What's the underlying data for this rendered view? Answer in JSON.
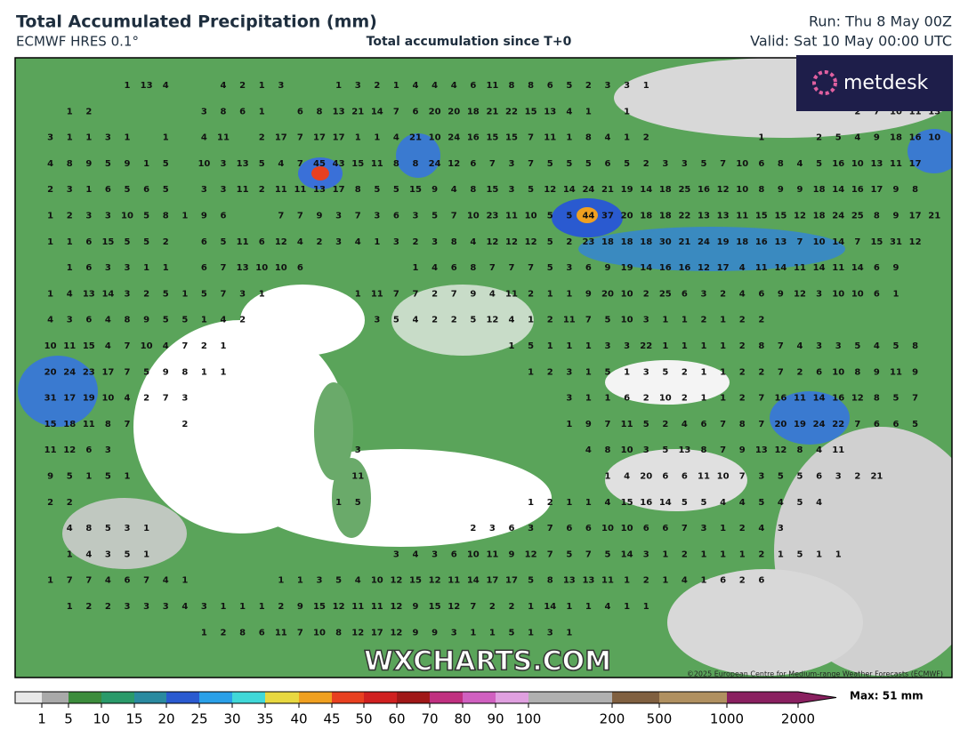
{
  "header": {
    "title": "Total Accumulated Precipitation (mm)",
    "model": "ECMWF HRES 0.1°",
    "subtitle": "Total accumulation since T+0",
    "run": "Run: Thu 8 May 00Z",
    "valid": "Valid: Sat 10 May 00:00 UTC"
  },
  "logo": "metdesk",
  "watermark": "WXCHARTS.COM",
  "copyright": "©2025 European Centre for Medium-range Weather Forecasts (ECMWF)",
  "point_values": [
    [
      null,
      null,
      null,
      null,
      null,
      1,
      13,
      4,
      null,
      null,
      4,
      2,
      1,
      3,
      null,
      null,
      1,
      3,
      2,
      1,
      4,
      4,
      4,
      6,
      11,
      8,
      8,
      6,
      5,
      2,
      3,
      3,
      1
    ],
    [
      null,
      null,
      1,
      2,
      null,
      null,
      null,
      null,
      null,
      3,
      8,
      6,
      1,
      null,
      6,
      8,
      13,
      21,
      14,
      7,
      6,
      20,
      20,
      18,
      21,
      22,
      15,
      13,
      4,
      1,
      null,
      1,
      null,
      null,
      null,
      null,
      null,
      null,
      null,
      null,
      null,
      null,
      null,
      2,
      7,
      10,
      11,
      13
    ],
    [
      null,
      3,
      1,
      1,
      3,
      1,
      null,
      1,
      null,
      4,
      11,
      null,
      2,
      17,
      7,
      17,
      17,
      1,
      1,
      4,
      21,
      10,
      24,
      16,
      15,
      15,
      7,
      11,
      1,
      8,
      4,
      1,
      2,
      null,
      null,
      null,
      null,
      null,
      1,
      null,
      null,
      2,
      5,
      4,
      9,
      18,
      16,
      10
    ],
    [
      null,
      4,
      8,
      9,
      5,
      9,
      1,
      5,
      null,
      10,
      3,
      13,
      5,
      4,
      7,
      45,
      43,
      15,
      11,
      8,
      8,
      24,
      12,
      6,
      7,
      3,
      7,
      5,
      5,
      5,
      6,
      5,
      2,
      3,
      3,
      5,
      7,
      10,
      6,
      8,
      4,
      5,
      16,
      10,
      13,
      11,
      17
    ],
    [
      null,
      2,
      3,
      1,
      6,
      5,
      6,
      5,
      null,
      3,
      3,
      11,
      2,
      11,
      11,
      13,
      17,
      8,
      5,
      5,
      15,
      9,
      4,
      8,
      15,
      3,
      5,
      12,
      14,
      24,
      21,
      19,
      14,
      18,
      25,
      16,
      12,
      10,
      8,
      9,
      9,
      18,
      14,
      16,
      17,
      9,
      8
    ],
    [
      null,
      1,
      2,
      3,
      3,
      10,
      5,
      8,
      1,
      9,
      6,
      null,
      null,
      7,
      7,
      9,
      3,
      7,
      3,
      6,
      3,
      5,
      7,
      10,
      23,
      11,
      10,
      5,
      5,
      44,
      37,
      20,
      18,
      18,
      22,
      13,
      13,
      11,
      15,
      15,
      12,
      18,
      24,
      25,
      8,
      9,
      17,
      21
    ],
    [
      null,
      1,
      1,
      6,
      15,
      5,
      5,
      2,
      null,
      6,
      5,
      11,
      6,
      12,
      4,
      2,
      3,
      4,
      1,
      3,
      2,
      3,
      8,
      4,
      12,
      12,
      12,
      5,
      2,
      23,
      18,
      18,
      18,
      30,
      21,
      24,
      19,
      18,
      16,
      13,
      7,
      10,
      14,
      7,
      15,
      31,
      12
    ],
    [
      null,
      null,
      1,
      6,
      3,
      3,
      1,
      1,
      null,
      6,
      7,
      13,
      10,
      10,
      6,
      null,
      null,
      null,
      null,
      null,
      1,
      4,
      6,
      8,
      7,
      7,
      7,
      5,
      3,
      6,
      9,
      19,
      14,
      16,
      16,
      12,
      17,
      4,
      11,
      14,
      11,
      14,
      11,
      14,
      6,
      9
    ],
    [
      null,
      1,
      4,
      13,
      14,
      3,
      2,
      5,
      1,
      5,
      7,
      3,
      1,
      null,
      null,
      null,
      null,
      1,
      11,
      7,
      7,
      2,
      7,
      9,
      4,
      11,
      2,
      1,
      1,
      9,
      20,
      10,
      2,
      25,
      6,
      3,
      2,
      4,
      6,
      9,
      12,
      3,
      10,
      10,
      6,
      1
    ],
    [
      null,
      4,
      3,
      6,
      4,
      8,
      9,
      5,
      5,
      1,
      4,
      2,
      null,
      null,
      null,
      null,
      null,
      null,
      3,
      5,
      4,
      2,
      2,
      5,
      12,
      4,
      1,
      2,
      11,
      7,
      5,
      10,
      3,
      1,
      1,
      2,
      1,
      2,
      2
    ],
    [
      null,
      10,
      11,
      15,
      4,
      7,
      10,
      4,
      7,
      2,
      1,
      null,
      null,
      null,
      null,
      null,
      null,
      null,
      null,
      null,
      null,
      null,
      null,
      null,
      null,
      1,
      5,
      1,
      1,
      1,
      3,
      3,
      22,
      1,
      1,
      1,
      1,
      2,
      8,
      7,
      4,
      3,
      3,
      5,
      4,
      5,
      8
    ],
    [
      null,
      20,
      24,
      23,
      17,
      7,
      5,
      9,
      8,
      1,
      1,
      null,
      null,
      null,
      null,
      null,
      null,
      null,
      null,
      null,
      null,
      null,
      null,
      null,
      null,
      null,
      1,
      2,
      3,
      1,
      5,
      1,
      3,
      5,
      2,
      1,
      1,
      2,
      2,
      7,
      2,
      6,
      10,
      8,
      9,
      11,
      9
    ],
    [
      null,
      31,
      17,
      19,
      10,
      4,
      2,
      7,
      3,
      null,
      null,
      null,
      null,
      null,
      null,
      null,
      null,
      null,
      null,
      null,
      null,
      null,
      null,
      null,
      null,
      null,
      null,
      null,
      3,
      1,
      1,
      6,
      2,
      10,
      2,
      1,
      1,
      2,
      7,
      16,
      11,
      14,
      16,
      12,
      8,
      5,
      7
    ],
    [
      null,
      15,
      18,
      11,
      8,
      7,
      null,
      null,
      2,
      null,
      null,
      null,
      null,
      null,
      null,
      null,
      null,
      null,
      null,
      null,
      null,
      null,
      null,
      null,
      null,
      null,
      null,
      null,
      1,
      9,
      7,
      11,
      5,
      2,
      4,
      6,
      7,
      8,
      7,
      20,
      19,
      24,
      22,
      7,
      6,
      6,
      5
    ],
    [
      null,
      11,
      12,
      6,
      3,
      null,
      null,
      null,
      null,
      null,
      null,
      null,
      null,
      null,
      null,
      null,
      null,
      3,
      null,
      null,
      null,
      null,
      null,
      null,
      null,
      null,
      null,
      null,
      null,
      4,
      8,
      10,
      3,
      5,
      13,
      8,
      7,
      9,
      13,
      12,
      8,
      4,
      11
    ],
    [
      null,
      9,
      5,
      1,
      5,
      1,
      null,
      null,
      null,
      null,
      null,
      null,
      null,
      null,
      null,
      null,
      null,
      11,
      null,
      null,
      null,
      null,
      null,
      null,
      null,
      null,
      null,
      null,
      null,
      null,
      1,
      4,
      20,
      6,
      6,
      11,
      10,
      7,
      3,
      5,
      5,
      6,
      3,
      2,
      21
    ],
    [
      null,
      2,
      2,
      null,
      null,
      null,
      null,
      null,
      null,
      null,
      null,
      null,
      null,
      null,
      null,
      null,
      1,
      5,
      null,
      null,
      null,
      null,
      null,
      null,
      null,
      null,
      1,
      2,
      1,
      1,
      4,
      15,
      16,
      14,
      5,
      5,
      4,
      4,
      5,
      4,
      5,
      4
    ],
    [
      null,
      null,
      4,
      8,
      5,
      3,
      1,
      null,
      null,
      null,
      null,
      null,
      null,
      null,
      null,
      null,
      null,
      null,
      null,
      null,
      null,
      null,
      null,
      2,
      3,
      6,
      3,
      7,
      6,
      6,
      10,
      10,
      6,
      6,
      7,
      3,
      1,
      2,
      4,
      3
    ],
    [
      null,
      null,
      1,
      4,
      3,
      5,
      1,
      null,
      null,
      null,
      null,
      null,
      null,
      null,
      null,
      null,
      null,
      null,
      null,
      3,
      4,
      3,
      6,
      10,
      11,
      9,
      12,
      7,
      5,
      7,
      5,
      14,
      3,
      1,
      2,
      1,
      1,
      1,
      2,
      1,
      5,
      1,
      1
    ],
    [
      null,
      1,
      7,
      7,
      4,
      6,
      7,
      4,
      1,
      null,
      null,
      null,
      null,
      1,
      1,
      3,
      5,
      4,
      10,
      12,
      15,
      12,
      11,
      14,
      17,
      17,
      5,
      8,
      13,
      13,
      11,
      1,
      2,
      1,
      4,
      1,
      6,
      2,
      6
    ],
    [
      null,
      null,
      1,
      2,
      2,
      3,
      3,
      3,
      4,
      3,
      1,
      1,
      1,
      2,
      9,
      15,
      12,
      11,
      11,
      12,
      9,
      15,
      12,
      7,
      2,
      2,
      1,
      14,
      1,
      1,
      4,
      1,
      1
    ],
    [
      null,
      null,
      null,
      null,
      null,
      null,
      null,
      null,
      null,
      1,
      2,
      8,
      6,
      11,
      7,
      10,
      8,
      12,
      17,
      12,
      9,
      9,
      3,
      1,
      1,
      5,
      1,
      3,
      1
    ]
  ],
  "colorbar": {
    "ticks": [
      1,
      5,
      10,
      15,
      20,
      25,
      30,
      35,
      40,
      45,
      50,
      60,
      70,
      80,
      90,
      100,
      200,
      500,
      1000,
      2000
    ],
    "colors": [
      "#e8e8e8",
      "#a9a9a9",
      "#3c8c3c",
      "#2a9a6a",
      "#2a8aa0",
      "#2a5ad0",
      "#2aa0e8",
      "#40d8d8",
      "#e8d840",
      "#f0a020",
      "#e84020",
      "#d02020",
      "#a01818",
      "#c03080",
      "#d060c0",
      "#e0a0e0",
      "#b0b0b0",
      "#806040",
      "#b09060",
      "#8a2060"
    ],
    "max_label": "Max: 51 mm"
  }
}
